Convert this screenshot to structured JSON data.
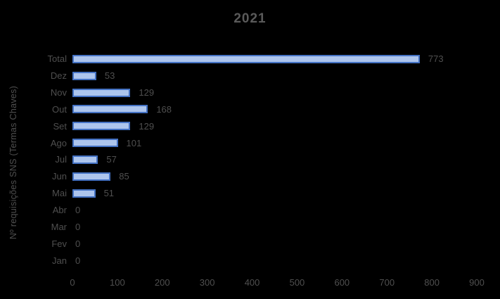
{
  "title": "2021",
  "colors": {
    "background": "#000000",
    "bar_fill": "#adc5ed",
    "bar_border": "#4472c4",
    "text": "#4f4f4f"
  },
  "chart_data": {
    "type": "bar",
    "orientation": "horizontal",
    "title": "2021",
    "ylabel": "Nº requisições SNS (Termas Chaves)",
    "xlabel": "",
    "xlim": [
      0,
      900
    ],
    "x_ticks": [
      0,
      100,
      200,
      300,
      400,
      500,
      600,
      700,
      800,
      900
    ],
    "grid": false,
    "legend": false,
    "data_labels": true,
    "categories": [
      "Total",
      "Dez",
      "Nov",
      "Out",
      "Set",
      "Ago",
      "Jul",
      "Jun",
      "Mai",
      "Abr",
      "Mar",
      "Fev",
      "Jan"
    ],
    "values": [
      773,
      53,
      129,
      168,
      129,
      101,
      57,
      85,
      51,
      0,
      0,
      0,
      0
    ]
  }
}
